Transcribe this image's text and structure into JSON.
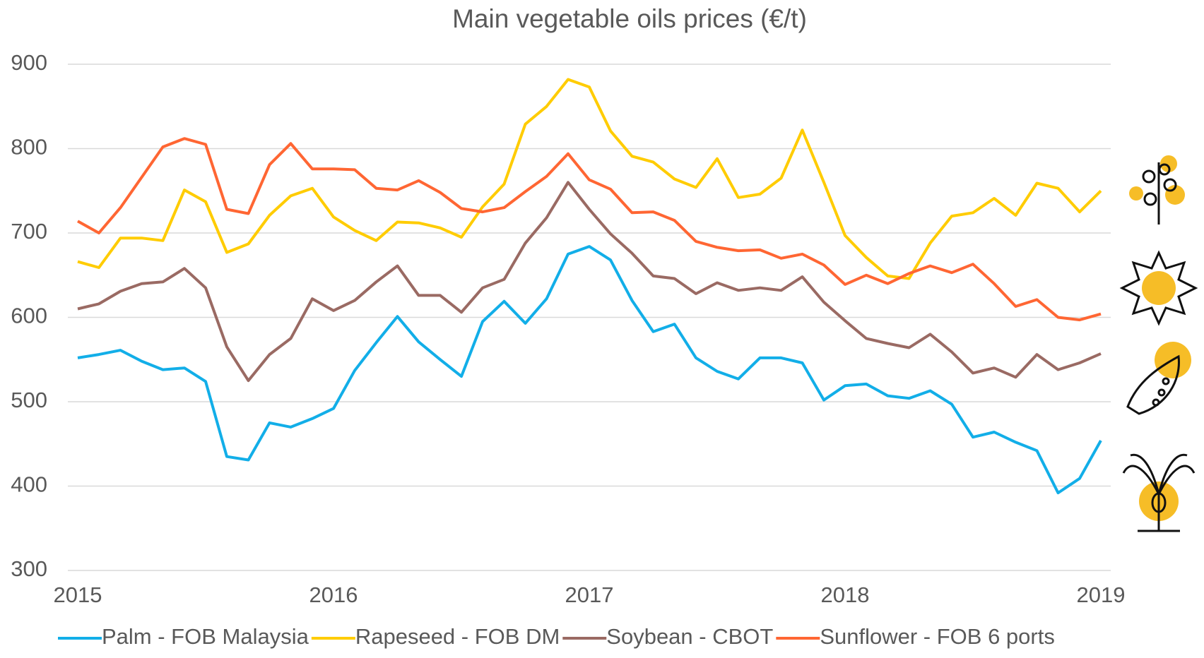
{
  "chart_data": {
    "type": "line",
    "title": "Main vegetable oils prices (€/t)",
    "x": [
      2015,
      2015.083,
      2015.167,
      2015.25,
      2015.333,
      2015.417,
      2015.5,
      2015.583,
      2015.667,
      2015.75,
      2015.833,
      2015.917,
      2016,
      2016.083,
      2016.167,
      2016.25,
      2016.333,
      2016.417,
      2016.5,
      2016.583,
      2016.667,
      2016.75,
      2016.833,
      2016.917,
      2017,
      2017.083,
      2017.167,
      2017.25,
      2017.333,
      2017.417,
      2017.5,
      2017.583,
      2017.667,
      2017.75,
      2017.833,
      2017.917,
      2018,
      2018.083,
      2018.167,
      2018.25,
      2018.333,
      2018.417,
      2018.5,
      2018.583,
      2018.667,
      2018.75,
      2018.833,
      2018.917,
      2019
    ],
    "series": [
      {
        "name": "Palm - FOB Malaysia",
        "color": "#12aee8",
        "values": [
          552,
          556,
          561,
          548,
          538,
          540,
          524,
          435,
          431,
          475,
          470,
          480,
          492,
          537,
          570,
          601,
          571,
          550,
          530,
          595,
          619,
          593,
          622,
          675,
          684,
          668,
          620,
          583,
          592,
          552,
          536,
          527,
          552,
          552,
          546,
          502,
          519,
          521,
          507,
          504,
          513,
          497,
          458,
          464,
          452,
          442,
          392,
          409,
          454
        ]
      },
      {
        "name": "Rapeseed - FOB DM",
        "color": "#ffcc00",
        "values": [
          666,
          659,
          694,
          694,
          691,
          751,
          737,
          677,
          687,
          721,
          744,
          753,
          719,
          703,
          691,
          713,
          712,
          706,
          695,
          731,
          758,
          829,
          850,
          882,
          873,
          821,
          791,
          784,
          764,
          754,
          788,
          742,
          746,
          765,
          822,
          760,
          697,
          671,
          649,
          646,
          688,
          720,
          724,
          741,
          721,
          759,
          753,
          725,
          750
        ]
      },
      {
        "name": "Soybean - CBOT",
        "color": "#9a6a63",
        "values": [
          610,
          616,
          631,
          640,
          642,
          658,
          635,
          565,
          525,
          556,
          575,
          622,
          608,
          620,
          642,
          661,
          626,
          626,
          606,
          635,
          645,
          688,
          718,
          760,
          728,
          699,
          676,
          649,
          646,
          628,
          641,
          632,
          635,
          632,
          648,
          618,
          596,
          575,
          569,
          564,
          580,
          559,
          534,
          540,
          529,
          556,
          538,
          546,
          557
        ]
      },
      {
        "name": "Sunflower - FOB 6 ports",
        "color": "#ff6633",
        "values": [
          714,
          700,
          730,
          766,
          802,
          812,
          805,
          728,
          723,
          781,
          806,
          776,
          776,
          775,
          753,
          751,
          762,
          748,
          729,
          725,
          730,
          749,
          767,
          794,
          763,
          752,
          724,
          725,
          715,
          690,
          683,
          679,
          680,
          670,
          675,
          662,
          639,
          650,
          640,
          652,
          661,
          653,
          663,
          640,
          613,
          621,
          600,
          597,
          604
        ]
      }
    ],
    "xlim": [
      2015,
      2019
    ],
    "xticks": [
      2015,
      2016,
      2017,
      2018,
      2019
    ],
    "ylim": [
      300,
      900
    ],
    "yticks": [
      300,
      400,
      500,
      600,
      700,
      800,
      900
    ],
    "grid": true,
    "legend": "bottom"
  }
}
